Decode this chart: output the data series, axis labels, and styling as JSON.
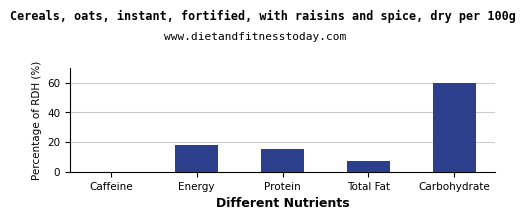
{
  "title": "Cereals, oats, instant, fortified, with raisins and spice, dry per 100g",
  "subtitle": "www.dietandfitnesstoday.com",
  "xlabel": "Different Nutrients",
  "ylabel": "Percentage of RDH (%)",
  "categories": [
    "Caffeine",
    "Energy",
    "Protein",
    "Total Fat",
    "Carbohydrate"
  ],
  "values": [
    0,
    18,
    15,
    7,
    60
  ],
  "bar_color": "#2b3f8c",
  "ylim": [
    0,
    70
  ],
  "yticks": [
    0,
    20,
    40,
    60
  ],
  "title_fontsize": 8.5,
  "subtitle_fontsize": 8,
  "xlabel_fontsize": 9,
  "ylabel_fontsize": 7.5,
  "tick_fontsize": 7.5,
  "background_color": "#ffffff",
  "grid_color": "#cccccc"
}
